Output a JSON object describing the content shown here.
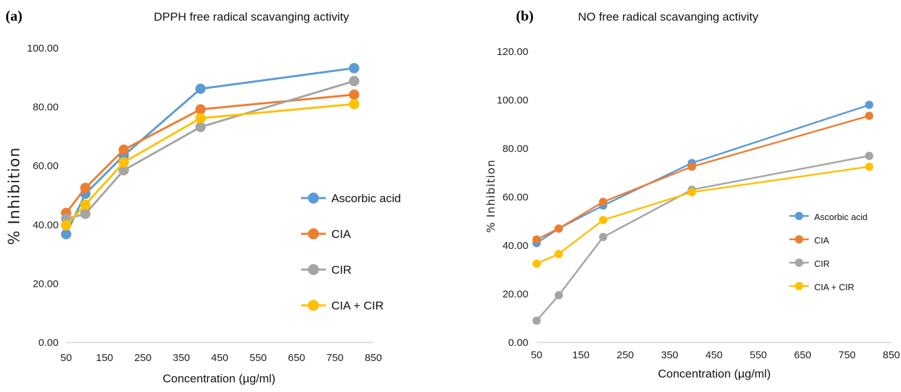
{
  "chart_data": [
    {
      "panel": "(a)",
      "type": "line",
      "title": "DPPH free radical scavanging activity",
      "xlabel": "Concentration (µg/ml)",
      "ylabel": "% Inhibition",
      "xlim": [
        50,
        850
      ],
      "ylim": [
        0,
        100
      ],
      "x_ticks": [
        "50",
        "150",
        "250",
        "350",
        "450",
        "550",
        "650",
        "750",
        "850"
      ],
      "y_ticks": [
        "0.00",
        "20.00",
        "40.00",
        "60.00",
        "80.00",
        "100.00"
      ],
      "grid": false,
      "legend": "right",
      "x": [
        50,
        100,
        200,
        400,
        800
      ],
      "series": [
        {
          "name": "Ascorbic acid",
          "color": "#5B9BD5",
          "values": [
            36.8,
            50.5,
            63.5,
            86.2,
            93.2
          ]
        },
        {
          "name": "CIA",
          "color": "#ED7D31",
          "values": [
            44.0,
            52.5,
            65.5,
            79.2,
            84.2
          ]
        },
        {
          "name": "CIR",
          "color": "#A5A5A5",
          "values": [
            42.0,
            43.7,
            58.5,
            73.2,
            88.8
          ]
        },
        {
          "name": "CIA + CIR",
          "color": "#FFC000",
          "values": [
            39.8,
            46.8,
            61.2,
            76.2,
            81.0
          ]
        }
      ]
    },
    {
      "panel": "(b)",
      "type": "line",
      "title": "NO free radical scavanging activity",
      "xlabel": "Concentration (µg/ml)",
      "ylabel": "% Inhibition",
      "xlim": [
        50,
        850
      ],
      "ylim": [
        0,
        120
      ],
      "x_ticks": [
        "50",
        "150",
        "250",
        "350",
        "450",
        "550",
        "650",
        "750",
        "850"
      ],
      "y_ticks": [
        "0.00",
        "20.00",
        "40.00",
        "60.00",
        "80.00",
        "100.00",
        "120.00"
      ],
      "grid": false,
      "legend": "right",
      "x": [
        50,
        100,
        200,
        400,
        800
      ],
      "series": [
        {
          "name": "Ascorbic acid",
          "color": "#5B9BD5",
          "values": [
            41.0,
            47.0,
            56.5,
            74.0,
            98.0
          ]
        },
        {
          "name": "CIA",
          "color": "#ED7D31",
          "values": [
            42.5,
            47.0,
            58.0,
            72.5,
            93.5
          ]
        },
        {
          "name": "CIR",
          "color": "#A5A5A5",
          "values": [
            9.0,
            19.5,
            43.5,
            63.0,
            77.0
          ]
        },
        {
          "name": "CIA + CIR",
          "color": "#FFC000",
          "values": [
            32.5,
            36.5,
            50.5,
            62.0,
            72.5
          ]
        }
      ]
    }
  ]
}
